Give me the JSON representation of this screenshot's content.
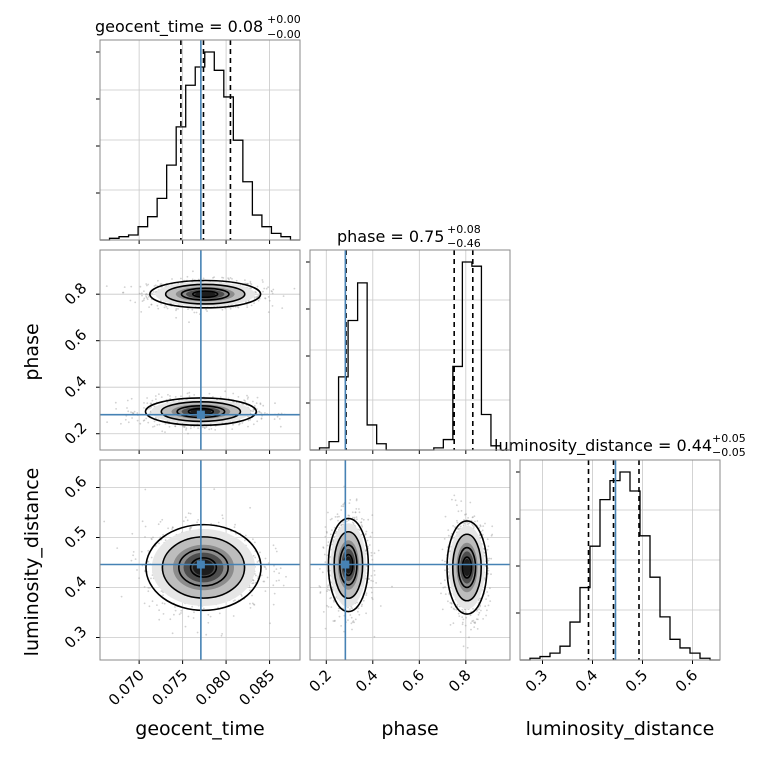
{
  "chart_data": {
    "type": "corner",
    "parameters": [
      "geocent_time",
      "phase",
      "luminosity_distance"
    ],
    "truths": [
      0.0771,
      0.282,
      0.446
    ],
    "truth_color": "#4682b4",
    "ranges": [
      [
        0.0655,
        0.0885
      ],
      [
        0.13,
        0.99
      ],
      [
        0.255,
        0.655
      ]
    ],
    "ticks": [
      {
        "values": [
          0.07,
          0.075,
          0.08,
          0.085
        ],
        "labels": [
          "0.070",
          "0.075",
          "0.080",
          "0.085"
        ]
      },
      {
        "values": [
          0.2,
          0.4,
          0.6,
          0.8
        ],
        "labels": [
          "0.2",
          "0.4",
          "0.6",
          "0.8"
        ]
      },
      {
        "values": [
          0.3,
          0.4,
          0.5,
          0.6
        ],
        "labels": [
          "0.3",
          "0.4",
          "0.5",
          "0.6"
        ]
      }
    ],
    "marginals": [
      {
        "parameter": "geocent_time",
        "title": "geocent_time = 0.08",
        "sup": "+0.00",
        "sub": "−0.00",
        "quantiles": [
          0.0748,
          0.0774,
          0.0805
        ],
        "bins": [
          0.0655,
          0.0885
        ],
        "counts": [
          0,
          1,
          2,
          3,
          8,
          14,
          25,
          45,
          68,
          93,
          104,
          113,
          102,
          86,
          60,
          35,
          15,
          8,
          4,
          2,
          0
        ]
      },
      {
        "parameter": "phase",
        "title": "phase = 0.75",
        "sup": "+0.08",
        "sub": "−0.46",
        "quantiles": [
          0.285,
          0.75,
          0.83
        ],
        "bins": [
          0.13,
          0.99
        ],
        "counts": [
          0,
          1,
          4,
          35,
          62,
          80,
          12,
          3,
          0,
          0,
          0,
          0,
          0,
          1,
          5,
          40,
          90,
          88,
          17,
          2,
          0
        ]
      },
      {
        "parameter": "luminosity_distance",
        "title": "luminosity_distance = 0.44",
        "sup": "+0.05",
        "sub": "−0.05",
        "quantiles": [
          0.392,
          0.442,
          0.493
        ],
        "bins": [
          0.255,
          0.655
        ],
        "counts": [
          0,
          1,
          2,
          4,
          8,
          22,
          42,
          66,
          93,
          104,
          109,
          98,
          72,
          48,
          25,
          12,
          7,
          4,
          1,
          0
        ]
      }
    ],
    "joint": [
      {
        "x": "geocent_time",
        "y": "phase",
        "modes": [
          {
            "cx": 0.0776,
            "cy": 0.8,
            "sx": 0.0026,
            "sy": 0.024
          },
          {
            "cx": 0.0771,
            "cy": 0.295,
            "sx": 0.0026,
            "sy": 0.024
          }
        ]
      },
      {
        "x": "geocent_time",
        "y": "luminosity_distance",
        "modes": [
          {
            "cx": 0.0774,
            "cy": 0.44,
            "sx": 0.0027,
            "sy": 0.035
          }
        ]
      },
      {
        "x": "phase",
        "y": "luminosity_distance",
        "modes": [
          {
            "cx": 0.295,
            "cy": 0.445,
            "sx": 0.035,
            "sy": 0.038
          },
          {
            "cx": 0.805,
            "cy": 0.44,
            "sx": 0.035,
            "sy": 0.038
          }
        ]
      }
    ]
  }
}
